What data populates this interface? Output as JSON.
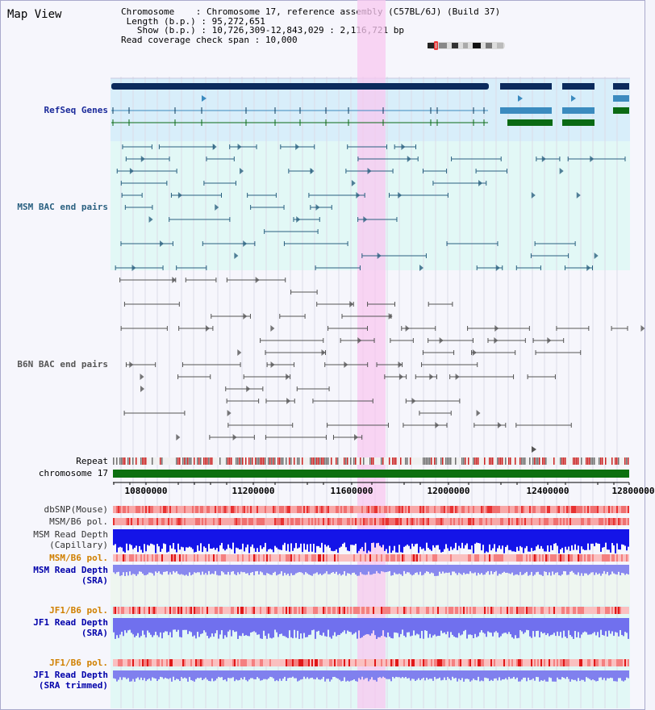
{
  "title": "Map View",
  "info": {
    "chromosome_label": "Chromosome",
    "chromosome_value": "Chromosome 17, reference assembly (C57BL/6J) (Build 37)",
    "length_label": "Length (b.p.)",
    "length_value": "95,272,651",
    "show_label": "Show (b.p.)",
    "show_value": "10,726,309-12,843,029 : 2,116,721 bp",
    "coverage_label": "Read coverage check span",
    "coverage_value": "10,000"
  },
  "colors": {
    "refseq": "#1a2a9a",
    "msm": "#2a6080",
    "b6n": "#555555",
    "orange": "#d08000",
    "blue": "#0000aa",
    "highlight": "#f8c8f0",
    "refseq_dark": "#0b2a5c",
    "refseq_mid": "#3b8bbf",
    "refseq_green": "#0a6a14"
  },
  "tracks": {
    "refseq": "RefSeq Genes",
    "msm_bac": "MSM BAC end pairs",
    "b6n_bac": "B6N BAC end pairs",
    "repeat": "Repeat",
    "chromosome": "chromosome 17",
    "dbsnp": "dbSNP(Mouse)",
    "msm_b6_pol_1": "MSM/B6 pol.",
    "msm_read_depth_cap": "MSM Read Depth\n(Capillary)",
    "msm_b6_pol_2": "MSM/B6 pol.",
    "msm_read_depth_sra": "MSM Read Depth\n(SRA)",
    "jf1_b6_pol_1": "JF1/B6 pol.",
    "jf1_read_depth_sra": "JF1 Read Depth\n(SRA)",
    "jf1_b6_pol_2": "JF1/B6 pol.",
    "jf1_read_depth_trimmed": "JF1 Read Depth\n(SRA trimmed)"
  },
  "axis": {
    "ticks": [
      "10800000",
      "11200000",
      "11600000",
      "12000000",
      "12400000",
      "12800000"
    ]
  }
}
